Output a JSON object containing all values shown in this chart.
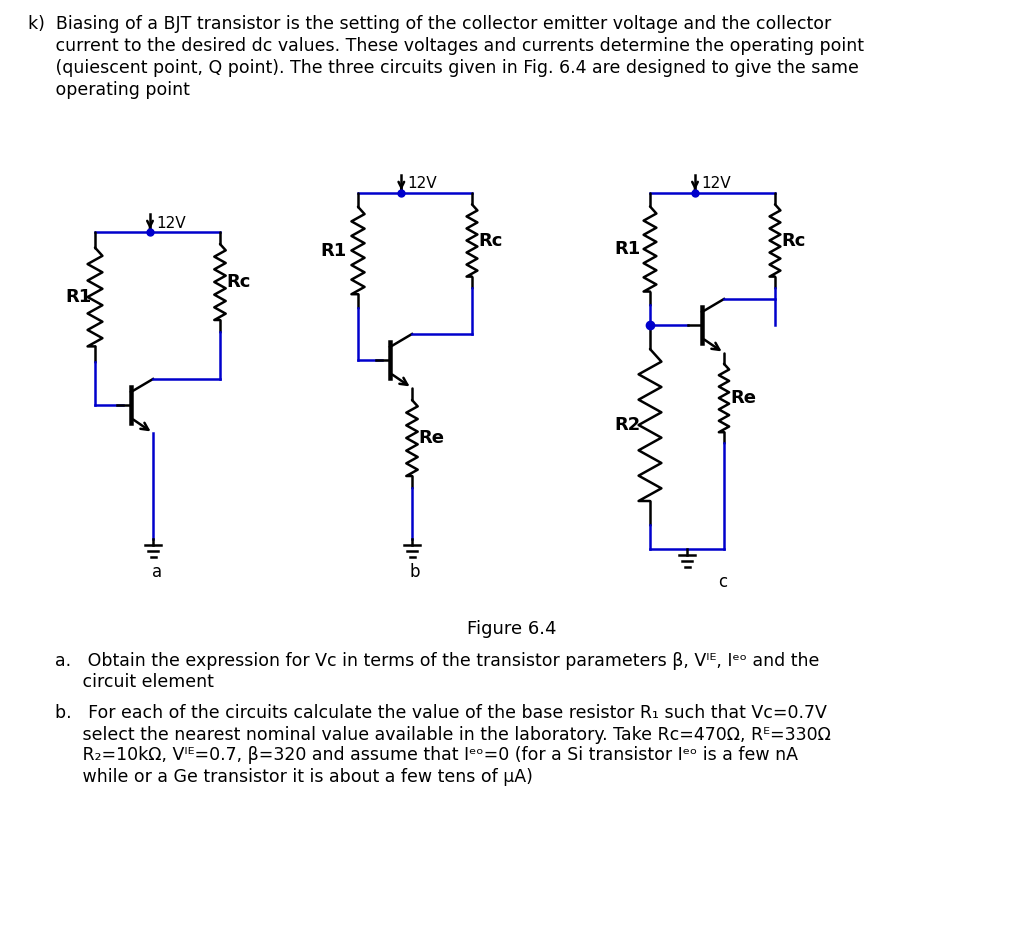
{
  "bg_color": "#FFFFFF",
  "blue": "#0000CC",
  "black": "#000000",
  "lw": 1.8,
  "top_text_lines": [
    "k)  Biasing of a BJT transistor is the setting of the collector emitter voltage and the collector",
    "     current to the desired dc values. These voltages and currents determine the operating point",
    "     (quiescent point, Q point). The three circuits given in Fig. 6.4 are designed to give the same",
    "     operating point"
  ],
  "fig_caption": "Figure 6.4",
  "circuit_a_label": "a",
  "circuit_b_label": "b",
  "circuit_c_label": "c",
  "part_a_line1": "a.   Obtain the expression for Vc in terms of the transistor parameters β, Vᴵᴱ, Iᵉᵒ and the",
  "part_a_line2": "     circuit element",
  "part_b_line1": "b.   For each of the circuits calculate the value of the base resistor R₁ such that Vc=0.7V",
  "part_b_line2": "     select the nearest nominal value available in the laboratory. Take Rc=470Ω, Rᴱ=330Ω",
  "part_b_line3": "     R₂=10kΩ, Vᴵᴱ=0.7, β=320 and assume that Iᵉᵒ=0 (for a Si transistor Iᵉᵒ is a few nA",
  "part_b_line4": "     while or a Ge transistor it is about a few tens of μA)"
}
